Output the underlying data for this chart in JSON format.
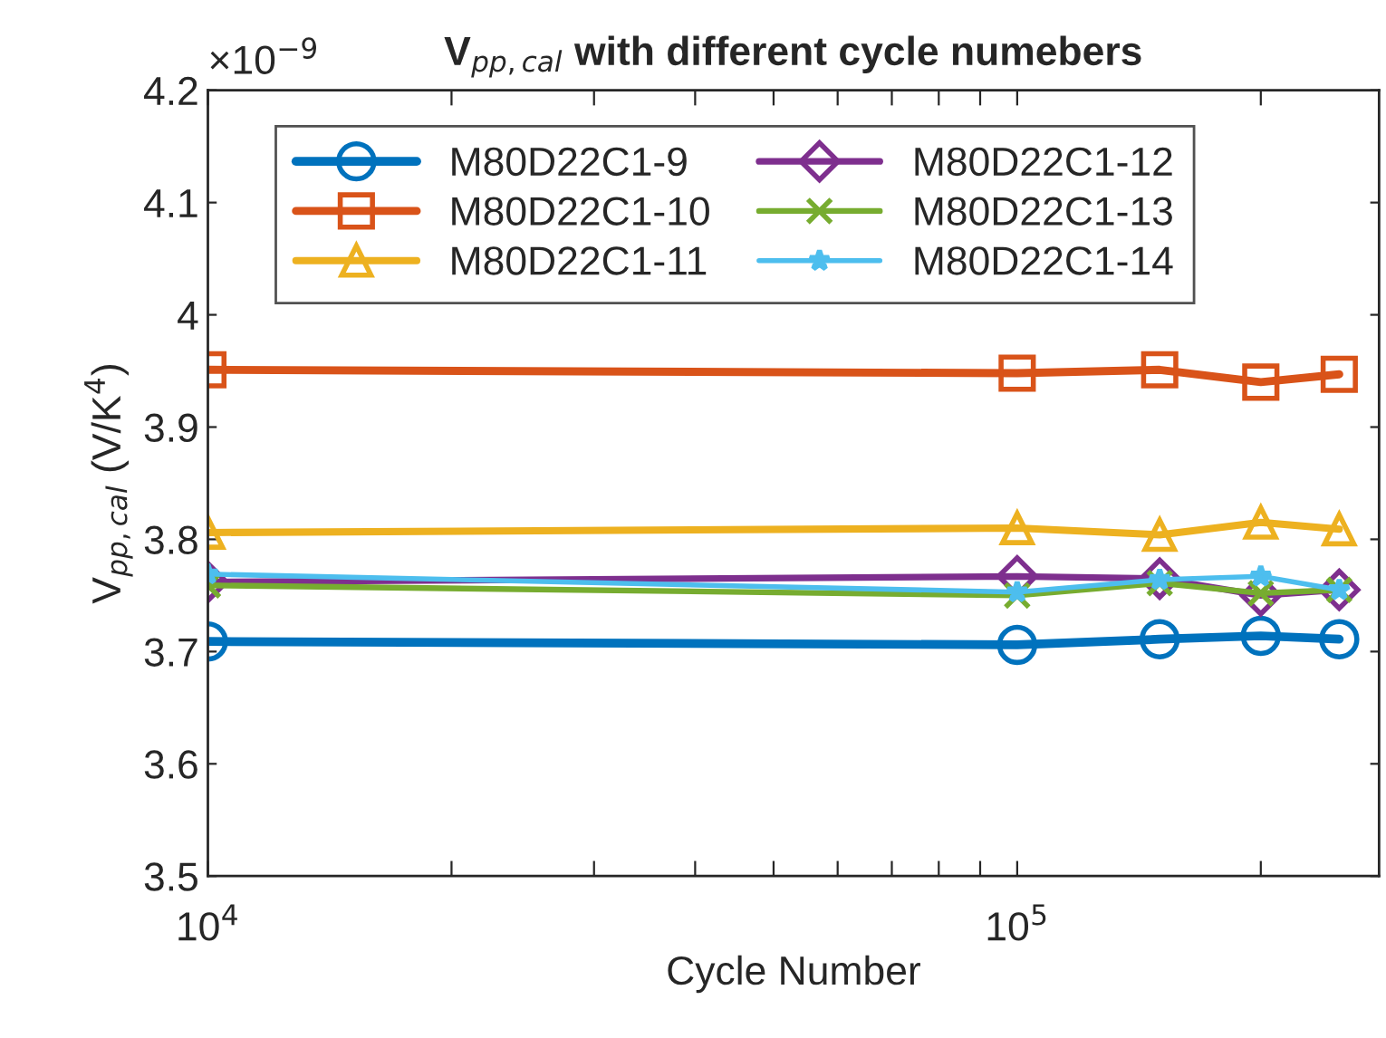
{
  "chart_data": {
    "type": "line",
    "title": "V$_{pp,cal}$ with different cycle numebers",
    "xlabel": "Cycle Number",
    "ylabel": "V$_{pp,cal}$ (V/K$^{4}$)",
    "annotations": [
      "×10$^{−9}$"
    ],
    "series": [
      {
        "name": "M80D22C1-9",
        "color": "#0072bd",
        "marker": "circle",
        "x": [
          10000,
          100000,
          150000,
          200000,
          250000
        ],
        "values": [
          3.709,
          3.706,
          3.711,
          3.714,
          3.711
        ]
      },
      {
        "name": "M80D22C1-10",
        "color": "#d95319",
        "marker": "square",
        "x": [
          10000,
          100000,
          150000,
          200000,
          250000
        ],
        "values": [
          3.951,
          3.948,
          3.951,
          3.94,
          3.947
        ]
      },
      {
        "name": "M80D22C1-11",
        "color": "#edb120",
        "marker": "triangle",
        "x": [
          10000,
          100000,
          150000,
          200000,
          250000
        ],
        "values": [
          3.806,
          3.81,
          3.804,
          3.815,
          3.809
        ]
      },
      {
        "name": "M80D22C1-12",
        "color": "#7e2f8e",
        "marker": "diamond",
        "x": [
          10000,
          100000,
          150000,
          200000,
          250000
        ],
        "values": [
          3.762,
          3.767,
          3.765,
          3.75,
          3.755
        ]
      },
      {
        "name": "M80D22C1-13",
        "color": "#77ac30",
        "marker": "cross",
        "x": [
          10000,
          100000,
          150000,
          200000,
          250000
        ],
        "values": [
          3.759,
          3.75,
          3.761,
          3.752,
          3.755
        ]
      },
      {
        "name": "M80D22C1-14",
        "color": "#4dbeee",
        "marker": "star",
        "x": [
          10000,
          100000,
          150000,
          200000,
          250000
        ],
        "values": [
          3.769,
          3.753,
          3.764,
          3.767,
          3.755
        ]
      }
    ],
    "log": "x",
    "xlim": [
      10000,
      280000
    ],
    "xticks": [
      {
        "value": 10000,
        "label": "10$^{4}$"
      },
      {
        "value": 20000,
        "label": null
      },
      {
        "value": 30000,
        "label": null
      },
      {
        "value": 40000,
        "label": null
      },
      {
        "value": 50000,
        "label": null
      },
      {
        "value": 60000,
        "label": null
      },
      {
        "value": 70000,
        "label": null
      },
      {
        "value": 80000,
        "label": null
      },
      {
        "value": 90000,
        "label": null
      },
      {
        "value": 100000,
        "label": "10$^{5}$"
      },
      {
        "value": 200000,
        "label": null
      }
    ],
    "ylim": [
      3.5,
      4.2
    ],
    "yticks": [
      3.5,
      3.6,
      3.7,
      3.8,
      3.9,
      4,
      4.1,
      4.2
    ],
    "grid": false,
    "legend": "top",
    "line_style": "solid"
  }
}
